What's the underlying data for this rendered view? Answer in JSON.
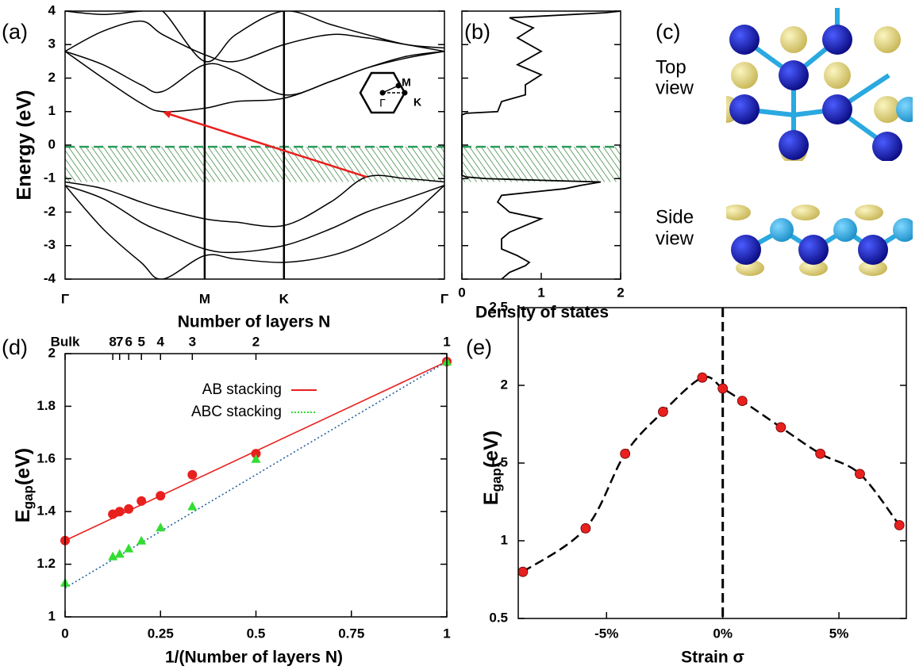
{
  "chart_data": [
    {
      "type": "line",
      "panel_label": "(a)",
      "ylabel": "Energy (eV)",
      "xlim": [
        0,
        1
      ],
      "xticks": [
        {
          "value": 0,
          "label": "Γ"
        },
        {
          "value": 0.368,
          "label": "M"
        },
        {
          "value": 0.577,
          "label": "K"
        },
        {
          "value": 1,
          "label": "Γ"
        }
      ],
      "ylim": [
        -4,
        4
      ],
      "yticks": [
        -4,
        -3,
        -2,
        -1,
        0,
        1,
        2,
        3,
        4
      ],
      "x": [
        0,
        0.1,
        0.2,
        0.257,
        0.368,
        0.45,
        0.577,
        0.7,
        0.795,
        0.9,
        1
      ],
      "series": [
        {
          "color": "#000000",
          "values": [
            2.8,
            2.0,
            1.25,
            1.0,
            1.1,
            1.3,
            1.4,
            1.9,
            2.3,
            2.65,
            2.8
          ]
        },
        {
          "color": "#000000",
          "values": [
            2.8,
            3.4,
            3.7,
            3.3,
            2.7,
            2.5,
            3.0,
            3.3,
            3.2,
            3.0,
            2.8
          ]
        },
        {
          "color": "#000000",
          "values": [
            2.8,
            2.4,
            1.8,
            1.6,
            2.4,
            2.2,
            1.5,
            1.9,
            2.3,
            2.6,
            2.8
          ]
        },
        {
          "color": "#000000",
          "values": [
            4,
            3.9,
            4,
            4,
            2.5,
            3.3,
            4,
            3.6,
            3.3,
            3.0,
            2.9
          ]
        },
        {
          "color": "#000000",
          "values": [
            -1.1,
            -1.3,
            -1.7,
            -1.9,
            -2.2,
            -2.3,
            -2.4,
            -1.7,
            -0.95,
            -1.0,
            -1.1
          ]
        },
        {
          "color": "#000000",
          "values": [
            -1.2,
            -1.6,
            -2.3,
            -2.6,
            -3.1,
            -3.2,
            -3.0,
            -2.5,
            -2.0,
            -1.6,
            -1.2
          ]
        },
        {
          "color": "#000000",
          "values": [
            -1.2,
            -2.5,
            -3.5,
            -4,
            -3.3,
            -3.4,
            -3.5,
            -3.3,
            -2.9,
            -2.2,
            -1.2
          ]
        }
      ],
      "fermi_level": -0.05,
      "shaded_range": [
        -1.1,
        -0.05
      ],
      "arrow": {
        "from": [
          0.795,
          -0.95
        ],
        "to": [
          0.257,
          1.0
        ],
        "color": "#e8201e"
      },
      "inset_labels": [
        "M",
        "Γ",
        "K"
      ]
    },
    {
      "type": "line",
      "panel_label": "(b)",
      "xlabel": "Density of states",
      "xlim": [
        0,
        2
      ],
      "xticks": [
        0,
        1,
        2
      ],
      "ylim": [
        -4,
        4
      ],
      "yticks": [
        -4,
        -3,
        -2,
        -1,
        0,
        1,
        2,
        3,
        4
      ],
      "series": [
        {
          "color": "#000000",
          "x": [
            0.5,
            0.6,
            0.8,
            0.85,
            0.7,
            0.5,
            0.5,
            0.6,
            0.9,
            1.0,
            0.6,
            0.45,
            0.5,
            0.9,
            1.3,
            1.5,
            1.75,
            1.0,
            0.3,
            0.05,
            0,
            0,
            0.05,
            0.45,
            0.5,
            0.8,
            0.8,
            1.0,
            0.7,
            1.0,
            0.7,
            0.9,
            0.6,
            1.8,
            2.0
          ],
          "values": [
            -4,
            -3.8,
            -3.6,
            -3.5,
            -3.3,
            -3.1,
            -2.8,
            -2.6,
            -2.3,
            -2.2,
            -2.0,
            -1.7,
            -1.5,
            -1.4,
            -1.3,
            -1.2,
            -1.1,
            -1.05,
            -1.0,
            -0.95,
            -0.9,
            0.9,
            0.95,
            1.0,
            1.3,
            1.5,
            1.8,
            2.1,
            2.4,
            2.8,
            3.2,
            3.5,
            3.8,
            3.95,
            4
          ]
        }
      ],
      "fermi_level": -0.05,
      "shaded_range": [
        -1.1,
        -0.05
      ]
    },
    {
      "type": "scatter",
      "panel_label": "(d)",
      "xlabel": "1/(Number of layers N)",
      "ylabel": {
        "text": "E",
        "sub": "gap",
        "unit": "(eV)"
      },
      "x2label": "Number of layers N",
      "xlim": [
        0,
        1
      ],
      "xticks": [
        0,
        0.25,
        0.5,
        0.75,
        1
      ],
      "x2ticks": [
        {
          "value": 0,
          "label": "Bulk"
        },
        {
          "value": 0.125,
          "label": "8"
        },
        {
          "value": 0.1429,
          "label": "7"
        },
        {
          "value": 0.1667,
          "label": "6"
        },
        {
          "value": 0.2,
          "label": "5"
        },
        {
          "value": 0.25,
          "label": "4"
        },
        {
          "value": 0.3333,
          "label": "3"
        },
        {
          "value": 0.5,
          "label": "2"
        },
        {
          "value": 1,
          "label": "1"
        }
      ],
      "ylim": [
        1,
        2
      ],
      "yticks": [
        1,
        1.2,
        1.4,
        1.6,
        1.8,
        2
      ],
      "x": [
        0,
        0.125,
        0.1429,
        0.1667,
        0.2,
        0.25,
        0.3333,
        0.5,
        1
      ],
      "series": [
        {
          "name": "AB stacking",
          "color": "#e8201e",
          "marker": "circle",
          "values": [
            1.29,
            1.39,
            1.4,
            1.41,
            1.44,
            1.46,
            1.54,
            1.62,
            1.97
          ]
        },
        {
          "name": "ABC stacking",
          "color": "#33dd33",
          "marker": "triangle",
          "values": [
            1.13,
            1.23,
            1.24,
            1.26,
            1.29,
            1.34,
            1.42,
            1.6,
            1.97
          ]
        }
      ],
      "fits": [
        {
          "color": "#e8201e",
          "style": "solid",
          "x": [
            0,
            1
          ],
          "values": [
            1.29,
            1.97
          ]
        },
        {
          "color": "#1f5fa0",
          "style": "dotted",
          "x": [
            0,
            1
          ],
          "values": [
            1.11,
            1.97
          ]
        }
      ],
      "legend": "upper center"
    },
    {
      "type": "scatter",
      "panel_label": "(e)",
      "xlabel": "Strain σ",
      "ylabel": {
        "text": "E",
        "sub": "gap",
        "unit": "(eV)"
      },
      "xlim": [
        -8.8,
        7.9
      ],
      "xticks": [
        {
          "value": -5,
          "label": "-5%"
        },
        {
          "value": 0,
          "label": "0%"
        },
        {
          "value": 5,
          "label": "5%"
        }
      ],
      "ylim": [
        0.5,
        2.5
      ],
      "yticks": [
        0.5,
        1,
        1.5,
        2,
        2.5
      ],
      "x": [
        -8.6,
        -5.9,
        -4.2,
        -2.57,
        -0.88,
        0,
        0.84,
        2.5,
        4.2,
        5.9,
        7.6
      ],
      "values": [
        0.8,
        1.08,
        1.56,
        1.83,
        2.05,
        1.98,
        1.9,
        1.73,
        1.56,
        1.43,
        1.1
      ],
      "marker_color": "#e8201e",
      "line_color": "#000000",
      "vline": 0
    }
  ],
  "structure_views": {
    "panel_label": "(c)",
    "top_label": [
      "Top",
      "view"
    ],
    "side_label": [
      "Side",
      "view"
    ]
  }
}
